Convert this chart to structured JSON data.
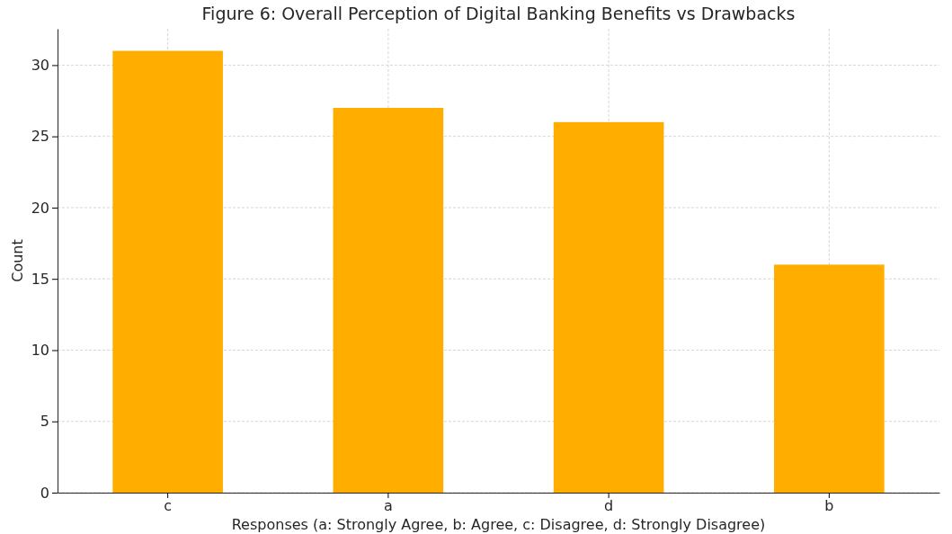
{
  "chart_data": {
    "type": "bar",
    "title": "Figure 6: Overall Perception of Digital Banking Benefits vs Drawbacks",
    "xlabel": "Responses (a: Strongly Agree, b: Agree, c: Disagree, d: Strongly Disagree)",
    "ylabel": "Count",
    "categories": [
      "c",
      "a",
      "d",
      "b"
    ],
    "values": [
      31,
      27,
      26,
      16
    ],
    "color": "#ffae00",
    "ylim": [
      0,
      32.55
    ],
    "yticks": [
      0,
      5,
      10,
      15,
      20,
      25,
      30
    ],
    "grid": true
  }
}
